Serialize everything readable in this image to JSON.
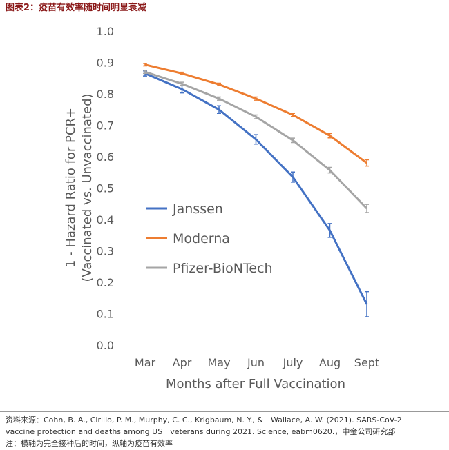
{
  "chart_data": {
    "type": "line",
    "title": "图表2：疫苗有效率随时间明显衰减",
    "x_label": "Months after Full Vaccination",
    "y_label": [
      "1 - Hazard Ratio for PCR+",
      "(Vaccinated vs. Unvaccinated)"
    ],
    "categories": [
      "Mar",
      "Apr",
      "May",
      "Jun",
      "July",
      "Aug",
      "Sept"
    ],
    "ylim": [
      0,
      1
    ],
    "yticks": [
      {
        "value": 0,
        "label": "0.0"
      },
      0.1,
      0.2,
      0.3,
      0.4,
      0.5,
      0.6,
      0.7,
      0.8,
      0.9,
      {
        "value": 1,
        "label": "1.0"
      }
    ],
    "grid": false,
    "legend": "center-left",
    "series": [
      {
        "name": "Janssen",
        "color": "#4472c4",
        "values": [
          0.865,
          0.815,
          0.75,
          0.655,
          0.535,
          0.365,
          0.13
        ],
        "errors": [
          0.008,
          0.012,
          0.012,
          0.015,
          0.016,
          0.022,
          0.04
        ]
      },
      {
        "name": "Moderna",
        "color": "#ed7d31",
        "values": [
          0.893,
          0.865,
          0.83,
          0.785,
          0.733,
          0.667,
          0.58
        ],
        "errors": [
          0.004,
          0.004,
          0.004,
          0.005,
          0.005,
          0.007,
          0.01
        ]
      },
      {
        "name": "Pfizer-BioNTech",
        "color": "#a5a5a5",
        "values": [
          0.87,
          0.832,
          0.785,
          0.727,
          0.652,
          0.557,
          0.435
        ],
        "errors": [
          0.005,
          0.005,
          0.005,
          0.006,
          0.007,
          0.009,
          0.013
        ]
      }
    ]
  },
  "footer": {
    "source": [
      "资料来源：Cohn, B. A., Cirillo, P. M., Murphy, C. C., Krigbaum, N. Y., &　Wallace, A. W. (2021). SARS-CoV-2",
      "vaccine protection and deaths among US　veterans during 2021. Science, eabm0620.，中金公司研究部"
    ],
    "note": "注：横轴为完全接种后的时间，纵轴为疫苗有效率"
  }
}
